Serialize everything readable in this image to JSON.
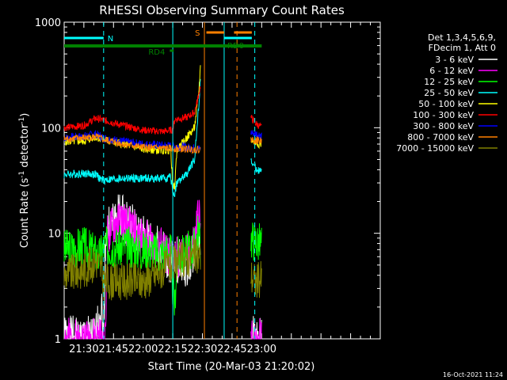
{
  "chart_data": {
    "type": "line",
    "title": "RHESSI Observing Summary Count Rates",
    "xlabel": "Start Time (20-Mar-03 21:20:02)",
    "ylabel": "Count Rate (s",
    "ylabel_sup1": "-1",
    "ylabel_mid": " detector",
    "ylabel_sup2": "-1",
    "ylabel_end": ")",
    "y_scale": "log",
    "ylim": [
      1,
      1000
    ],
    "xlim_minutes": [
      20.03,
      180
    ],
    "x_ticks": [
      {
        "m": 30,
        "label": "21:30"
      },
      {
        "m": 45,
        "label": "21:45"
      },
      {
        "m": 60,
        "label": "22:00"
      },
      {
        "m": 75,
        "label": "22:15"
      },
      {
        "m": 90,
        "label": "22:30"
      },
      {
        "m": 105,
        "label": "22:45"
      },
      {
        "m": 120,
        "label": "23:00"
      }
    ],
    "y_ticks": [
      {
        "v": 1,
        "label": "1"
      },
      {
        "v": 10,
        "label": "10"
      },
      {
        "v": 100,
        "label": "100"
      },
      {
        "v": 1000,
        "label": "1000"
      }
    ],
    "legend_position": "right",
    "legend_header": [
      "Det 1,3,4,5,6,9,",
      "FDecim 1, Att 0"
    ],
    "series": [
      {
        "name": "3 - 6 keV",
        "color": "#ffffff",
        "seed": 1,
        "noise": 0.22,
        "points": [
          [
            20,
            1
          ],
          [
            36,
            1
          ],
          [
            37.5,
            1.6
          ],
          [
            38.5,
            1.9
          ],
          [
            39,
            2
          ],
          [
            40,
            1
          ],
          [
            41,
            10
          ],
          [
            48,
            15
          ],
          [
            54,
            12
          ],
          [
            58,
            9
          ],
          [
            63,
            8.5
          ],
          [
            68,
            7.5
          ],
          [
            74,
            5
          ],
          [
            78,
            5.5
          ],
          [
            82,
            5
          ],
          [
            86,
            6.5
          ],
          [
            88,
            11
          ],
          [
            89,
            7
          ],
          [
            90,
            null
          ],
          [
            114,
            null
          ],
          [
            114.5,
            1
          ],
          [
            120,
            1
          ]
        ]
      },
      {
        "name": "6 - 12 keV",
        "color": "#ff00ff",
        "seed": 2,
        "noise": 0.2,
        "points": [
          [
            20,
            1
          ],
          [
            41,
            1
          ],
          [
            42,
            10
          ],
          [
            48,
            13
          ],
          [
            55,
            11
          ],
          [
            58,
            9
          ],
          [
            63,
            8.5
          ],
          [
            68,
            7.5
          ],
          [
            74,
            6
          ],
          [
            80,
            6
          ],
          [
            86,
            8
          ],
          [
            88,
            16
          ],
          [
            89,
            10
          ],
          [
            90,
            null
          ],
          [
            114,
            null
          ],
          [
            114.5,
            1
          ],
          [
            120,
            1
          ]
        ]
      },
      {
        "name": "12 - 25 keV",
        "color": "#00ff00",
        "seed": 3,
        "noise": 0.2,
        "points": [
          [
            20,
            7
          ],
          [
            30,
            7.5
          ],
          [
            36,
            6.5
          ],
          [
            38,
            6
          ],
          [
            40,
            7.5
          ],
          [
            50,
            7.5
          ],
          [
            60,
            7
          ],
          [
            70,
            6.5
          ],
          [
            74,
            7
          ],
          [
            75,
            3
          ],
          [
            76,
            2
          ],
          [
            77,
            6
          ],
          [
            82,
            6.5
          ],
          [
            86,
            7.5
          ],
          [
            88,
            11
          ],
          [
            89,
            7
          ],
          [
            90,
            null
          ],
          [
            114,
            null
          ],
          [
            114.5,
            9
          ],
          [
            120,
            8
          ]
        ]
      },
      {
        "name": "25 - 50 keV",
        "color": "#00ffff",
        "seed": 4,
        "noise": 0.04,
        "points": [
          [
            20,
            36
          ],
          [
            30,
            37
          ],
          [
            36,
            36
          ],
          [
            38,
            33
          ],
          [
            40,
            32
          ],
          [
            50,
            33
          ],
          [
            60,
            33
          ],
          [
            70,
            33
          ],
          [
            74,
            34
          ],
          [
            75,
            24
          ],
          [
            76,
            24
          ],
          [
            77,
            30
          ],
          [
            82,
            36
          ],
          [
            86,
            50
          ],
          [
            88,
            150
          ],
          [
            89,
            300
          ],
          [
            90,
            null
          ],
          [
            114,
            null
          ],
          [
            114.5,
            48
          ],
          [
            117,
            41
          ],
          [
            120,
            38
          ]
        ]
      },
      {
        "name": "50 - 100 keV",
        "color": "#ffff00",
        "seed": 5,
        "noise": 0.04,
        "points": [
          [
            20,
            74
          ],
          [
            30,
            75
          ],
          [
            36,
            82
          ],
          [
            40,
            77
          ],
          [
            50,
            70
          ],
          [
            60,
            63
          ],
          [
            70,
            61
          ],
          [
            74,
            62
          ],
          [
            75,
            27
          ],
          [
            76,
            28
          ],
          [
            77,
            60
          ],
          [
            82,
            80
          ],
          [
            86,
            100
          ],
          [
            88,
            200
          ],
          [
            89,
            380
          ],
          [
            90,
            null
          ],
          [
            114,
            null
          ],
          [
            114.5,
            78
          ],
          [
            117,
            72
          ],
          [
            120,
            70
          ]
        ]
      },
      {
        "name": "100 - 300 keV",
        "color": "#ff0000",
        "seed": 6,
        "noise": 0.035,
        "points": [
          [
            20,
            100
          ],
          [
            30,
            105
          ],
          [
            36,
            123
          ],
          [
            40,
            118
          ],
          [
            50,
            105
          ],
          [
            60,
            95
          ],
          [
            70,
            92
          ],
          [
            74,
            95
          ],
          [
            75,
            95
          ],
          [
            76,
            120
          ],
          [
            82,
            125
          ],
          [
            86,
            140
          ],
          [
            88,
            200
          ],
          [
            89,
            250
          ],
          [
            90,
            null
          ],
          [
            114,
            null
          ],
          [
            114.5,
            125
          ],
          [
            117,
            110
          ],
          [
            120,
            100
          ]
        ]
      },
      {
        "name": "300 - 800 keV",
        "color": "#0000ff",
        "seed": 7,
        "noise": 0.04,
        "points": [
          [
            20,
            80
          ],
          [
            30,
            83
          ],
          [
            36,
            87
          ],
          [
            40,
            80
          ],
          [
            50,
            74
          ],
          [
            60,
            70
          ],
          [
            70,
            68
          ],
          [
            80,
            66
          ],
          [
            89,
            63
          ],
          [
            90,
            null
          ],
          [
            114,
            null
          ],
          [
            114.5,
            90
          ],
          [
            117,
            88
          ],
          [
            120,
            85
          ]
        ]
      },
      {
        "name": "800 - 7000 keV",
        "color": "#ff8000",
        "seed": 8,
        "noise": 0.035,
        "points": [
          [
            20,
            78
          ],
          [
            30,
            80
          ],
          [
            36,
            82
          ],
          [
            40,
            77
          ],
          [
            50,
            70
          ],
          [
            60,
            65
          ],
          [
            70,
            64
          ],
          [
            80,
            63
          ],
          [
            89,
            62
          ],
          [
            90,
            null
          ],
          [
            114,
            null
          ],
          [
            114.5,
            78
          ],
          [
            117,
            76
          ],
          [
            120,
            75
          ]
        ]
      },
      {
        "name": "7000 - 15000 keV",
        "color": "#808000",
        "seed": 9,
        "noise": 0.18,
        "points": [
          [
            20,
            4
          ],
          [
            30,
            4.5
          ],
          [
            34,
            5
          ],
          [
            36,
            5.5
          ],
          [
            38,
            5
          ],
          [
            40,
            3.5
          ],
          [
            50,
            3.5
          ],
          [
            60,
            3.5
          ],
          [
            70,
            4.5
          ],
          [
            74,
            5
          ],
          [
            78,
            5.5
          ],
          [
            86,
            6
          ],
          [
            89,
            6
          ],
          [
            90,
            null
          ],
          [
            114,
            null
          ],
          [
            114.5,
            4
          ],
          [
            117,
            3.5
          ],
          [
            120,
            3.8
          ]
        ]
      }
    ],
    "flags": [
      {
        "label": "N",
        "color": "#00ffff",
        "segments": [
          [
            20.03,
            40
          ]
        ]
      },
      {
        "label": "S",
        "color": "#ff8000",
        "segments": [
          [
            92,
            101
          ],
          [
            106,
            115
          ]
        ]
      },
      {
        "label": "RD0",
        "color": "#008000",
        "segments": [
          [
            20.03,
            120
          ]
        ]
      },
      {
        "label": "RD4",
        "color": "#008000",
        "segments": [
          [
            73.5,
            75.5
          ]
        ]
      }
    ],
    "flag_color_extra": [
      {
        "color": "#00ffff",
        "segments": [
          [
            101,
            115
          ]
        ]
      }
    ],
    "vlines": [
      {
        "m": 40,
        "color": "#00ffff",
        "style": "dashed"
      },
      {
        "m": 75,
        "color": "#00ffff",
        "style": "solid"
      },
      {
        "m": 91,
        "color": "#ff8000",
        "style": "solid"
      },
      {
        "m": 101,
        "color": "#00ffff",
        "style": "solid"
      },
      {
        "m": 107.5,
        "color": "#ff8000",
        "style": "dashed"
      },
      {
        "m": 116.5,
        "color": "#00ffff",
        "style": "dashed"
      }
    ]
  },
  "timestamp": "16-Oct-2021 11:24"
}
